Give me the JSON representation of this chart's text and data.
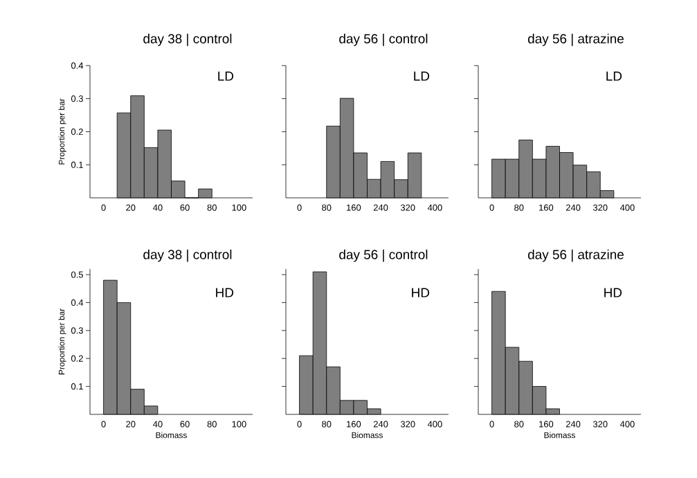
{
  "chart_data": [
    {
      "type": "histogram",
      "title": "day 38 | control",
      "ylabel": "Proportion per bar",
      "annotations": [
        "LD"
      ],
      "color": "#7f7f7f",
      "bins": [
        10,
        20,
        30,
        40,
        50,
        60,
        70,
        80
      ],
      "values": [
        0.257,
        0.309,
        0.152,
        0.205,
        0.051,
        0,
        0.027
      ],
      "xlim": [
        -10,
        110
      ],
      "xticks": [
        0,
        20,
        40,
        60,
        80,
        100
      ],
      "ylim": [
        0,
        0.4
      ],
      "yticks": [
        0.1,
        0.2,
        0.3,
        0.4
      ]
    },
    {
      "type": "histogram",
      "title": "day 56 | control",
      "annotations": [
        "LD"
      ],
      "color": "#7f7f7f",
      "tick_labels": "x",
      "bins": [
        80,
        120,
        160,
        200,
        240,
        280,
        320,
        360
      ],
      "values": [
        0.217,
        0.301,
        0.136,
        0.056,
        0.11,
        0.055,
        0.136
      ],
      "xlim": [
        -40,
        440
      ],
      "xticks": [
        0,
        80,
        160,
        240,
        320,
        400
      ],
      "ylim": [
        0,
        0.4
      ],
      "yticks": [
        0.1,
        0.2,
        0.3,
        0.4
      ]
    },
    {
      "type": "histogram",
      "title": "day 56 | atrazine",
      "annotations": [
        "LD"
      ],
      "color": "#7f7f7f",
      "tick_labels": "x",
      "bins": [
        0,
        40,
        80,
        120,
        160,
        200,
        240,
        280,
        320,
        360
      ],
      "values": [
        0.117,
        0.117,
        0.175,
        0.117,
        0.156,
        0.137,
        0.099,
        0.079,
        0.022
      ],
      "xlim": [
        -40,
        440
      ],
      "xticks": [
        0,
        80,
        160,
        240,
        320,
        400
      ],
      "ylim": [
        0,
        0.4
      ],
      "yticks": [
        0.1,
        0.2,
        0.3,
        0.4
      ]
    },
    {
      "type": "histogram",
      "title": "day 38 | control",
      "xlabel": "Biomass",
      "ylabel": "Proportion per bar",
      "annotations": [
        "HD"
      ],
      "color": "#7f7f7f",
      "bins": [
        0,
        10,
        20,
        30,
        40
      ],
      "values": [
        0.48,
        0.4,
        0.09,
        0.03
      ],
      "xlim": [
        -10,
        110
      ],
      "xticks": [
        0,
        20,
        40,
        60,
        80,
        100
      ],
      "ylim": [
        0,
        0.52
      ],
      "yticks": [
        0.1,
        0.2,
        0.3,
        0.4,
        0.5
      ]
    },
    {
      "type": "histogram",
      "title": "day 56 | control",
      "xlabel": "Biomass",
      "annotations": [
        "HD"
      ],
      "color": "#7f7f7f",
      "tick_labels": "x",
      "bins": [
        0,
        40,
        80,
        120,
        160,
        200,
        240
      ],
      "values": [
        0.21,
        0.51,
        0.17,
        0.05,
        0.05,
        0.02
      ],
      "xlim": [
        -40,
        440
      ],
      "xticks": [
        0,
        80,
        160,
        240,
        320,
        400
      ],
      "ylim": [
        0,
        0.52
      ],
      "yticks": [
        0.1,
        0.2,
        0.3,
        0.4,
        0.5
      ]
    },
    {
      "type": "histogram",
      "title": "day 56 | atrazine",
      "xlabel": "Biomass",
      "annotations": [
        "HD"
      ],
      "color": "#7f7f7f",
      "tick_labels": "x",
      "bins": [
        0,
        40,
        80,
        120,
        160,
        200
      ],
      "values": [
        0.44,
        0.24,
        0.19,
        0.1,
        0.02
      ],
      "xlim": [
        -40,
        440
      ],
      "xticks": [
        0,
        80,
        160,
        240,
        320,
        400
      ],
      "ylim": [
        0,
        0.52
      ],
      "yticks": [
        0.1,
        0.2,
        0.3,
        0.4,
        0.5
      ]
    }
  ]
}
